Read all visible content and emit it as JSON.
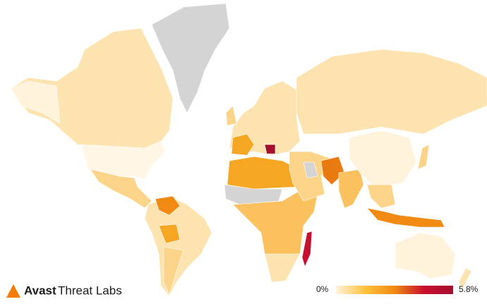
{
  "logo": {
    "brand": "Avast",
    "product": "Threat Labs"
  },
  "chart_data": {
    "type": "choropleth",
    "scale": {
      "lim": [
        0,
        5.8
      ],
      "ticks": [
        {
          "value": 0,
          "label": "0%"
        },
        {
          "value": 5.8,
          "label": "5.8%"
        }
      ],
      "colors": [
        "#fff3dc",
        "#ffc23a",
        "#f08a12",
        "#c8102e",
        "#a50f2d"
      ],
      "no_data_color": "#d4d4d4"
    }
  }
}
